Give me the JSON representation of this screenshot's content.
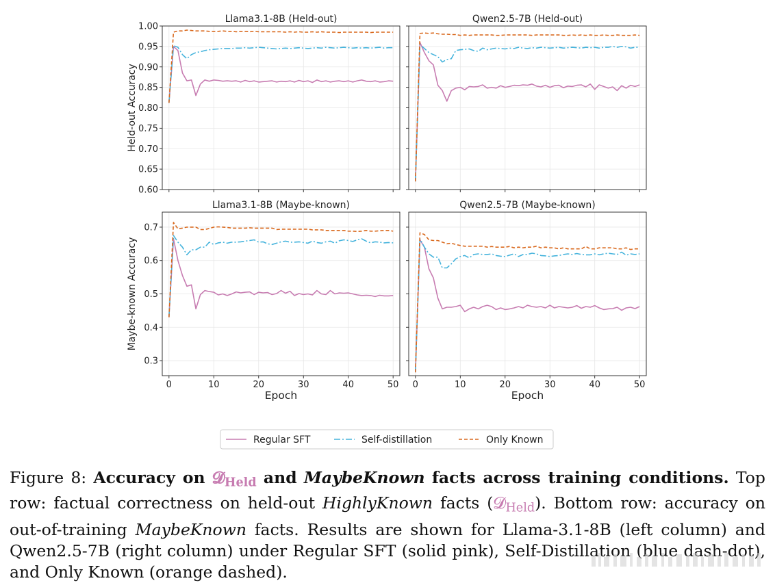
{
  "caption": {
    "label": "Figure 8:",
    "bold_prefix": "Accuracy on",
    "dheld_symbol": "𝓓",
    "dheld_sub": "Held",
    "bold_and": "and",
    "bold_maybe": "MaybeKnown",
    "bold_suffix": "facts across training conditions.",
    "t1": "Top row: factual correctness on held-out",
    "highly": "HighlyKnown",
    "t2": "facts (",
    "t3": "). Bottom row: accuracy on out-of-training",
    "maybe": "MaybeKnown",
    "t4": "facts. Results are shown for Llama-3.1-8B (left column) and Qwen2.5-7B (right column) under Regular SFT (solid pink), Self-Distillation (blue dash-dot), and Only Known (orange dashed)."
  },
  "legend": {
    "items": [
      "Regular SFT",
      "Self-distillation",
      "Only Known"
    ],
    "colors": [
      "#c77cb1",
      "#45b3dc",
      "#d9691e"
    ]
  },
  "chart_data": [
    {
      "type": "line",
      "title": "Llama3.1-8B (Held-out)",
      "xlabel": "",
      "ylabel": "Held-out Accuracy",
      "xlim": [
        -1.5,
        51.5
      ],
      "ylim": [
        0.6,
        1.0
      ],
      "xticks": [
        0,
        10,
        20,
        30,
        40,
        50
      ],
      "xtick_labels": [
        "",
        "",
        "",
        "",
        "",
        ""
      ],
      "yticks": [
        0.6,
        0.65,
        0.7,
        0.75,
        0.8,
        0.85,
        0.9,
        0.95,
        1.0
      ],
      "ytick_labels": [
        "0.60",
        "0.65",
        "0.70",
        "0.75",
        "0.80",
        "0.85",
        "0.90",
        "0.95",
        "1.00"
      ],
      "grid": true,
      "series": [
        {
          "name": "Regular SFT",
          "values": [
            0.812,
            0.95,
            0.94,
            0.885,
            0.866,
            0.868,
            0.83,
            0.858,
            0.868,
            0.865,
            0.868,
            0.867,
            0.865,
            0.866,
            0.865,
            0.866,
            0.863,
            0.867,
            0.864,
            0.866,
            0.863,
            0.864,
            0.865,
            0.866,
            0.863,
            0.865,
            0.864,
            0.866,
            0.863,
            0.867,
            0.864,
            0.866,
            0.862,
            0.868,
            0.864,
            0.866,
            0.863,
            0.865,
            0.866,
            0.864,
            0.866,
            0.863,
            0.866,
            0.868,
            0.865,
            0.864,
            0.866,
            0.863,
            0.864,
            0.866,
            0.865
          ]
        },
        {
          "name": "Self-distillation",
          "values": [
            0.812,
            0.952,
            0.948,
            0.93,
            0.92,
            0.93,
            0.935,
            0.937,
            0.94,
            0.942,
            0.943,
            0.944,
            0.945,
            0.945,
            0.945,
            0.946,
            0.946,
            0.947,
            0.946,
            0.947,
            0.948,
            0.947,
            0.946,
            0.945,
            0.944,
            0.945,
            0.946,
            0.945,
            0.946,
            0.947,
            0.946,
            0.945,
            0.946,
            0.947,
            0.946,
            0.948,
            0.947,
            0.946,
            0.947,
            0.948,
            0.947,
            0.946,
            0.947,
            0.946,
            0.947,
            0.946,
            0.947,
            0.948,
            0.946,
            0.947,
            0.947
          ]
        },
        {
          "name": "Only Known",
          "values": [
            0.812,
            0.985,
            0.988,
            0.988,
            0.99,
            0.989,
            0.988,
            0.988,
            0.988,
            0.987,
            0.987,
            0.987,
            0.988,
            0.987,
            0.987,
            0.986,
            0.987,
            0.987,
            0.986,
            0.987,
            0.986,
            0.986,
            0.986,
            0.986,
            0.986,
            0.986,
            0.985,
            0.986,
            0.985,
            0.986,
            0.985,
            0.985,
            0.986,
            0.985,
            0.986,
            0.985,
            0.985,
            0.985,
            0.984,
            0.985,
            0.985,
            0.985,
            0.985,
            0.985,
            0.985,
            0.984,
            0.985,
            0.985,
            0.985,
            0.985,
            0.985
          ]
        }
      ]
    },
    {
      "type": "line",
      "title": "Qwen2.5-7B (Held-out)",
      "xlabel": "",
      "ylabel": "",
      "xlim": [
        -1.5,
        51.5
      ],
      "ylim": [
        0.6,
        1.0
      ],
      "xticks": [
        0,
        10,
        20,
        30,
        40,
        50
      ],
      "xtick_labels": [
        "",
        "",
        "",
        "",
        "",
        ""
      ],
      "yticks": [
        0.6,
        0.65,
        0.7,
        0.75,
        0.8,
        0.85,
        0.9,
        0.95,
        1.0
      ],
      "ytick_labels": [
        "",
        "",
        "",
        "",
        "",
        "",
        "",
        "",
        ""
      ],
      "grid": true,
      "series": [
        {
          "name": "Regular SFT",
          "values": [
            0.62,
            0.96,
            0.935,
            0.915,
            0.905,
            0.855,
            0.842,
            0.816,
            0.842,
            0.848,
            0.85,
            0.844,
            0.852,
            0.851,
            0.852,
            0.856,
            0.848,
            0.85,
            0.848,
            0.854,
            0.85,
            0.852,
            0.855,
            0.854,
            0.856,
            0.855,
            0.858,
            0.853,
            0.851,
            0.855,
            0.85,
            0.854,
            0.855,
            0.849,
            0.853,
            0.852,
            0.855,
            0.856,
            0.851,
            0.858,
            0.845,
            0.856,
            0.852,
            0.848,
            0.851,
            0.842,
            0.854,
            0.848,
            0.855,
            0.852,
            0.856
          ]
        },
        {
          "name": "Self-distillation",
          "values": [
            0.62,
            0.955,
            0.945,
            0.935,
            0.93,
            0.925,
            0.912,
            0.918,
            0.92,
            0.94,
            0.942,
            0.943,
            0.944,
            0.94,
            0.938,
            0.946,
            0.942,
            0.944,
            0.946,
            0.945,
            0.944,
            0.946,
            0.945,
            0.948,
            0.946,
            0.945,
            0.947,
            0.946,
            0.948,
            0.947,
            0.946,
            0.947,
            0.948,
            0.946,
            0.947,
            0.948,
            0.947,
            0.946,
            0.948,
            0.947,
            0.948,
            0.946,
            0.948,
            0.948,
            0.95,
            0.948,
            0.95,
            0.949,
            0.946,
            0.948,
            0.948
          ]
        },
        {
          "name": "Only Known",
          "values": [
            0.62,
            0.982,
            0.983,
            0.982,
            0.983,
            0.981,
            0.98,
            0.98,
            0.979,
            0.979,
            0.977,
            0.978,
            0.977,
            0.978,
            0.978,
            0.978,
            0.978,
            0.978,
            0.977,
            0.977,
            0.978,
            0.978,
            0.978,
            0.978,
            0.978,
            0.978,
            0.977,
            0.978,
            0.978,
            0.978,
            0.978,
            0.978,
            0.978,
            0.977,
            0.977,
            0.978,
            0.977,
            0.978,
            0.977,
            0.978,
            0.977,
            0.977,
            0.978,
            0.977,
            0.977,
            0.978,
            0.977,
            0.977,
            0.977,
            0.978,
            0.977
          ]
        }
      ]
    },
    {
      "type": "line",
      "title": "Llama3.1-8B (Maybe-known)",
      "xlabel": "Epoch",
      "ylabel": "Maybe-known Accuracy",
      "xlim": [
        -1.5,
        51.5
      ],
      "ylim": [
        0.255,
        0.745
      ],
      "xticks": [
        0,
        10,
        20,
        30,
        40,
        50
      ],
      "xtick_labels": [
        "0",
        "10",
        "20",
        "30",
        "40",
        "50"
      ],
      "yticks": [
        0.3,
        0.4,
        0.5,
        0.6,
        0.7
      ],
      "ytick_labels": [
        "0.3",
        "0.4",
        "0.5",
        "0.6",
        "0.7"
      ],
      "grid": true,
      "series": [
        {
          "name": "Regular SFT",
          "values": [
            0.43,
            0.665,
            0.6,
            0.555,
            0.523,
            0.527,
            0.455,
            0.498,
            0.51,
            0.507,
            0.505,
            0.497,
            0.5,
            0.495,
            0.5,
            0.506,
            0.503,
            0.505,
            0.506,
            0.498,
            0.505,
            0.503,
            0.504,
            0.498,
            0.501,
            0.51,
            0.502,
            0.508,
            0.495,
            0.501,
            0.498,
            0.5,
            0.497,
            0.51,
            0.5,
            0.498,
            0.51,
            0.5,
            0.503,
            0.502,
            0.503,
            0.5,
            0.497,
            0.495,
            0.496,
            0.495,
            0.492,
            0.496,
            0.494,
            0.494,
            0.495
          ]
        },
        {
          "name": "Self-distillation",
          "values": [
            0.43,
            0.675,
            0.655,
            0.64,
            0.617,
            0.632,
            0.632,
            0.64,
            0.64,
            0.655,
            0.648,
            0.653,
            0.655,
            0.652,
            0.655,
            0.655,
            0.656,
            0.658,
            0.66,
            0.662,
            0.655,
            0.656,
            0.65,
            0.648,
            0.652,
            0.656,
            0.658,
            0.655,
            0.655,
            0.656,
            0.654,
            0.652,
            0.658,
            0.654,
            0.652,
            0.656,
            0.658,
            0.652,
            0.659,
            0.662,
            0.66,
            0.657,
            0.662,
            0.665,
            0.658,
            0.653,
            0.656,
            0.655,
            0.653,
            0.654,
            0.653
          ]
        },
        {
          "name": "Only Known",
          "values": [
            0.43,
            0.714,
            0.695,
            0.697,
            0.7,
            0.7,
            0.7,
            0.693,
            0.693,
            0.696,
            0.7,
            0.701,
            0.7,
            0.699,
            0.697,
            0.697,
            0.697,
            0.697,
            0.698,
            0.697,
            0.697,
            0.697,
            0.697,
            0.697,
            0.693,
            0.694,
            0.694,
            0.694,
            0.694,
            0.694,
            0.694,
            0.694,
            0.692,
            0.692,
            0.692,
            0.69,
            0.69,
            0.69,
            0.69,
            0.69,
            0.688,
            0.688,
            0.687,
            0.688,
            0.69,
            0.688,
            0.688,
            0.689,
            0.69,
            0.69,
            0.688
          ]
        }
      ]
    },
    {
      "type": "line",
      "title": "Qwen2.5-7B (Maybe-known)",
      "xlabel": "Epoch",
      "ylabel": "",
      "xlim": [
        -1.5,
        51.5
      ],
      "ylim": [
        0.255,
        0.745
      ],
      "xticks": [
        0,
        10,
        20,
        30,
        40,
        50
      ],
      "xtick_labels": [
        "0",
        "10",
        "20",
        "30",
        "40",
        "50"
      ],
      "yticks": [
        0.3,
        0.4,
        0.5,
        0.6,
        0.7
      ],
      "ytick_labels": [
        "",
        "",
        "",
        "",
        ""
      ],
      "grid": true,
      "series": [
        {
          "name": "Regular SFT",
          "values": [
            0.265,
            0.662,
            0.64,
            0.575,
            0.548,
            0.487,
            0.455,
            0.46,
            0.46,
            0.462,
            0.466,
            0.447,
            0.455,
            0.46,
            0.455,
            0.462,
            0.466,
            0.462,
            0.453,
            0.458,
            0.453,
            0.455,
            0.458,
            0.462,
            0.458,
            0.466,
            0.462,
            0.46,
            0.462,
            0.458,
            0.466,
            0.458,
            0.462,
            0.46,
            0.458,
            0.46,
            0.465,
            0.457,
            0.462,
            0.46,
            0.465,
            0.458,
            0.453,
            0.455,
            0.456,
            0.46,
            0.451,
            0.458,
            0.46,
            0.456,
            0.462
          ]
        },
        {
          "name": "Self-distillation",
          "values": [
            0.265,
            0.665,
            0.64,
            0.62,
            0.61,
            0.61,
            0.578,
            0.578,
            0.59,
            0.605,
            0.612,
            0.615,
            0.608,
            0.618,
            0.62,
            0.618,
            0.618,
            0.62,
            0.615,
            0.613,
            0.612,
            0.616,
            0.62,
            0.612,
            0.618,
            0.618,
            0.622,
            0.62,
            0.615,
            0.614,
            0.612,
            0.614,
            0.615,
            0.618,
            0.62,
            0.618,
            0.621,
            0.618,
            0.617,
            0.617,
            0.62,
            0.617,
            0.62,
            0.622,
            0.62,
            0.618,
            0.625,
            0.616,
            0.62,
            0.618,
            0.62
          ]
        },
        {
          "name": "Only Known",
          "values": [
            0.265,
            0.683,
            0.678,
            0.662,
            0.66,
            0.66,
            0.655,
            0.65,
            0.652,
            0.648,
            0.645,
            0.643,
            0.643,
            0.643,
            0.643,
            0.643,
            0.64,
            0.642,
            0.64,
            0.64,
            0.64,
            0.642,
            0.638,
            0.64,
            0.638,
            0.64,
            0.64,
            0.643,
            0.638,
            0.64,
            0.638,
            0.638,
            0.635,
            0.638,
            0.635,
            0.635,
            0.635,
            0.635,
            0.642,
            0.635,
            0.635,
            0.638,
            0.638,
            0.638,
            0.638,
            0.635,
            0.635,
            0.638,
            0.633,
            0.635,
            0.635
          ]
        }
      ]
    }
  ]
}
